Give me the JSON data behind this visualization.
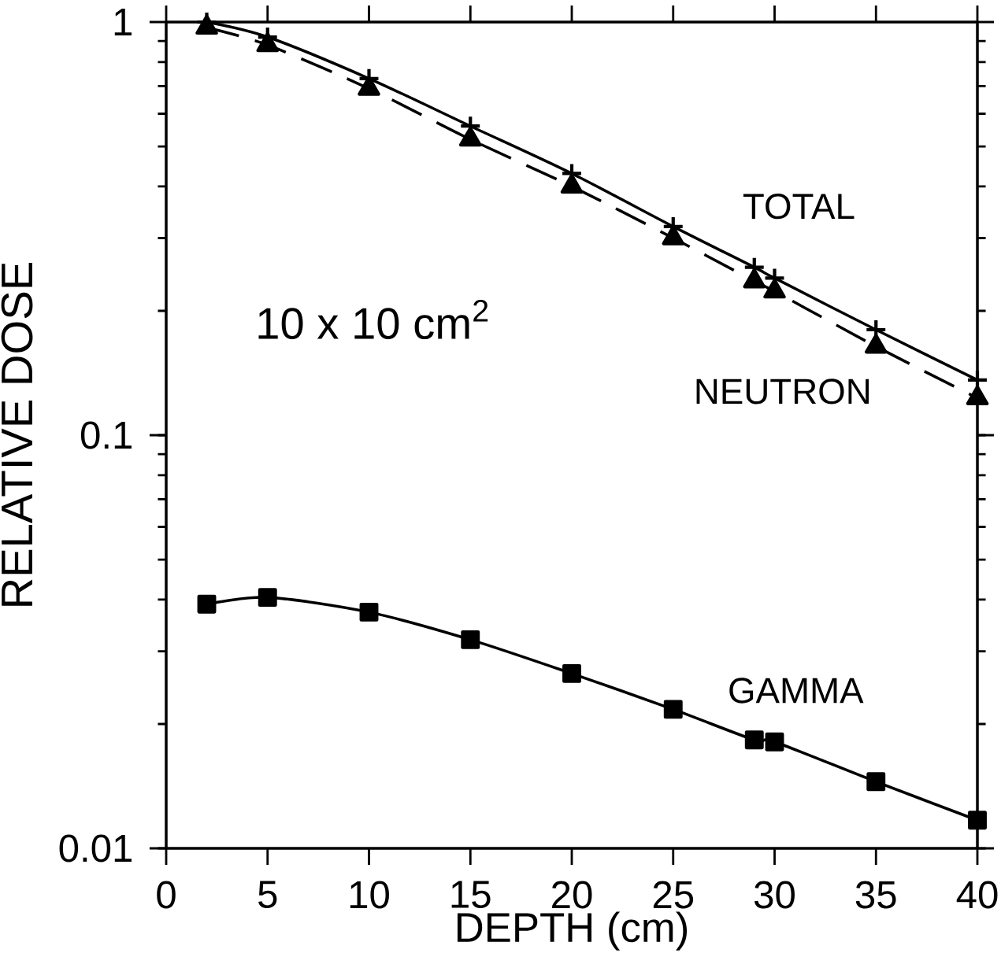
{
  "chart_data": {
    "type": "line",
    "xlabel": "DEPTH (cm)",
    "ylabel": "RELATIVE DOSE",
    "annotations": [
      "10 x 10 cm$^{2}$"
    ],
    "x": [
      2,
      5,
      10,
      15,
      20,
      25,
      29,
      30,
      35,
      40
    ],
    "series": [
      {
        "name": "TOTAL",
        "color": "#000000",
        "marker": "cross",
        "line_style": "solid",
        "values": [
          1.0,
          0.92,
          0.73,
          0.56,
          0.43,
          0.32,
          0.255,
          0.24,
          0.18,
          0.136
        ]
      },
      {
        "name": "NEUTRON",
        "color": "#000000",
        "marker": "triangle",
        "line_style": "dashed",
        "values": [
          0.97,
          0.88,
          0.69,
          0.52,
          0.4,
          0.3,
          0.236,
          0.223,
          0.164,
          0.123
        ]
      },
      {
        "name": "GAMMA",
        "color": "#000000",
        "marker": "square",
        "line_style": "solid",
        "values": [
          0.039,
          0.0405,
          0.0373,
          0.032,
          0.0265,
          0.0217,
          0.0183,
          0.0181,
          0.0145,
          0.0117
        ]
      }
    ],
    "xlim": [
      0,
      40
    ],
    "ylim": [
      0.01,
      1
    ],
    "xticks": [
      0,
      5,
      10,
      15,
      20,
      25,
      30,
      35,
      40
    ],
    "yticks": [
      0.01,
      0.1,
      1
    ],
    "log": "y",
    "legend": false
  }
}
